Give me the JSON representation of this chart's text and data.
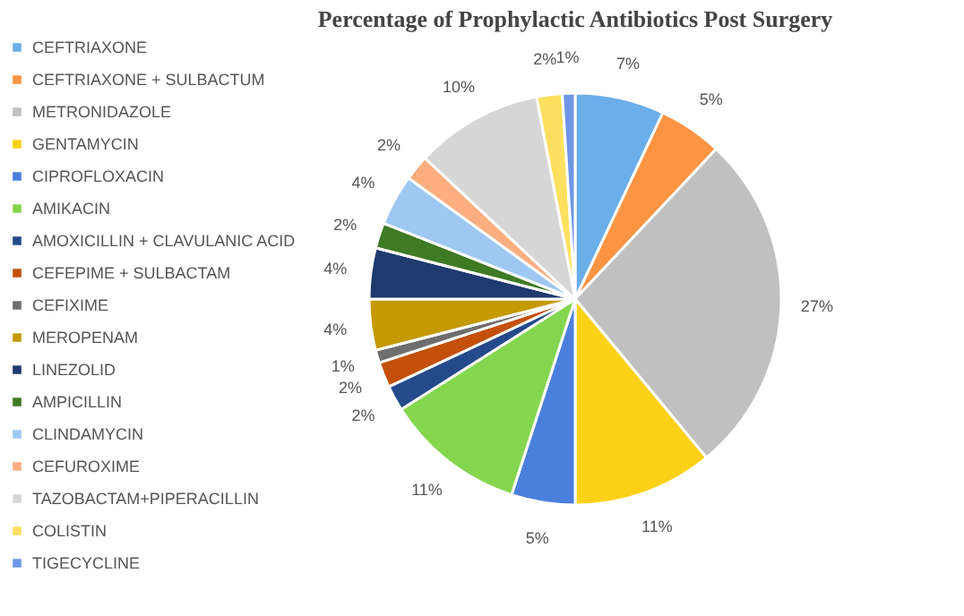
{
  "chart_data": {
    "type": "pie",
    "title": "Percentage of Prophylactic Antibiotics Post Surgery",
    "categories": [
      "CEFTRIAXONE",
      "CEFTRIAXONE + SULBACTUM",
      "METRONIDAZOLE",
      "GENTAMYCIN",
      "CIPROFLOXACIN",
      "AMIKACIN",
      "AMOXICILLIN + CLAVULANIC ACID",
      "CEFEPIME + SULBACTAM",
      "CEFIXIME",
      "MEROPENAM",
      "LINEZOLID",
      "AMPICILLIN",
      "CLINDAMYCIN",
      "CEFUROXIME",
      "TAZOBACTAM+PIPERACILLIN",
      "COLISTIN",
      "TIGECYCLINE"
    ],
    "values": [
      7,
      5,
      27,
      11,
      5,
      11,
      2,
      2,
      1,
      4,
      4,
      2,
      4,
      2,
      10,
      2,
      1
    ],
    "value_labels": [
      "7%",
      "5%",
      "27%",
      "11%",
      "5%",
      "11%",
      "2%",
      "2%",
      "1%",
      "4%",
      "4%",
      "2%",
      "4%",
      "2%",
      "10%",
      "2%",
      "1%"
    ],
    "colors": [
      "#6aaeea",
      "#fb9443",
      "#c0c0c0",
      "#fdd116",
      "#4a7fdc",
      "#84d64e",
      "#244a8c",
      "#c4500c",
      "#6e6e6e",
      "#c49a00",
      "#1e3a6e",
      "#3f7a24",
      "#9ec8f2",
      "#fcae80",
      "#d6d6d6",
      "#fde060",
      "#6e96e6"
    ],
    "legend": "left"
  }
}
